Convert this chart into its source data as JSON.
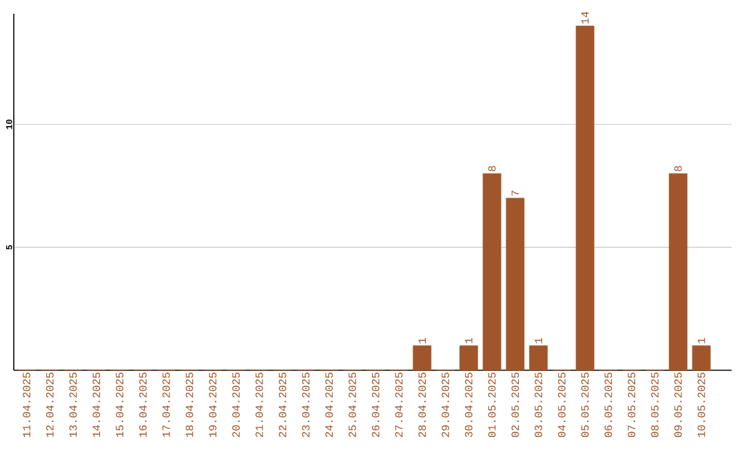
{
  "chart_data": {
    "type": "bar",
    "categories": [
      "11.04.2025",
      "12.04.2025",
      "13.04.2025",
      "14.04.2025",
      "15.04.2025",
      "16.04.2025",
      "17.04.2025",
      "18.04.2025",
      "19.04.2025",
      "20.04.2025",
      "21.04.2025",
      "22.04.2025",
      "23.04.2025",
      "24.04.2025",
      "25.04.2025",
      "26.04.2025",
      "27.04.2025",
      "28.04.2025",
      "29.04.2025",
      "30.04.2025",
      "01.05.2025",
      "02.05.2025",
      "03.05.2025",
      "04.05.2025",
      "05.05.2025",
      "06.05.2025",
      "07.05.2025",
      "08.05.2025",
      "09.05.2025",
      "10.05.2025"
    ],
    "values": [
      0,
      0,
      0,
      0,
      0,
      0,
      0,
      0,
      0,
      0,
      0,
      0,
      0,
      0,
      0,
      0,
      0,
      1,
      0,
      1,
      8,
      7,
      1,
      0,
      14,
      0,
      0,
      0,
      8,
      1
    ],
    "value_labels": [
      null,
      null,
      null,
      null,
      null,
      null,
      null,
      null,
      null,
      null,
      null,
      null,
      null,
      null,
      null,
      null,
      null,
      "1",
      null,
      "1",
      "8",
      "7",
      "1",
      null,
      "14",
      null,
      null,
      null,
      "8",
      "1"
    ],
    "color": "#a0562a",
    "ylim": [
      0,
      14.5
    ],
    "yticks": [
      5,
      10
    ],
    "grid": "y"
  }
}
